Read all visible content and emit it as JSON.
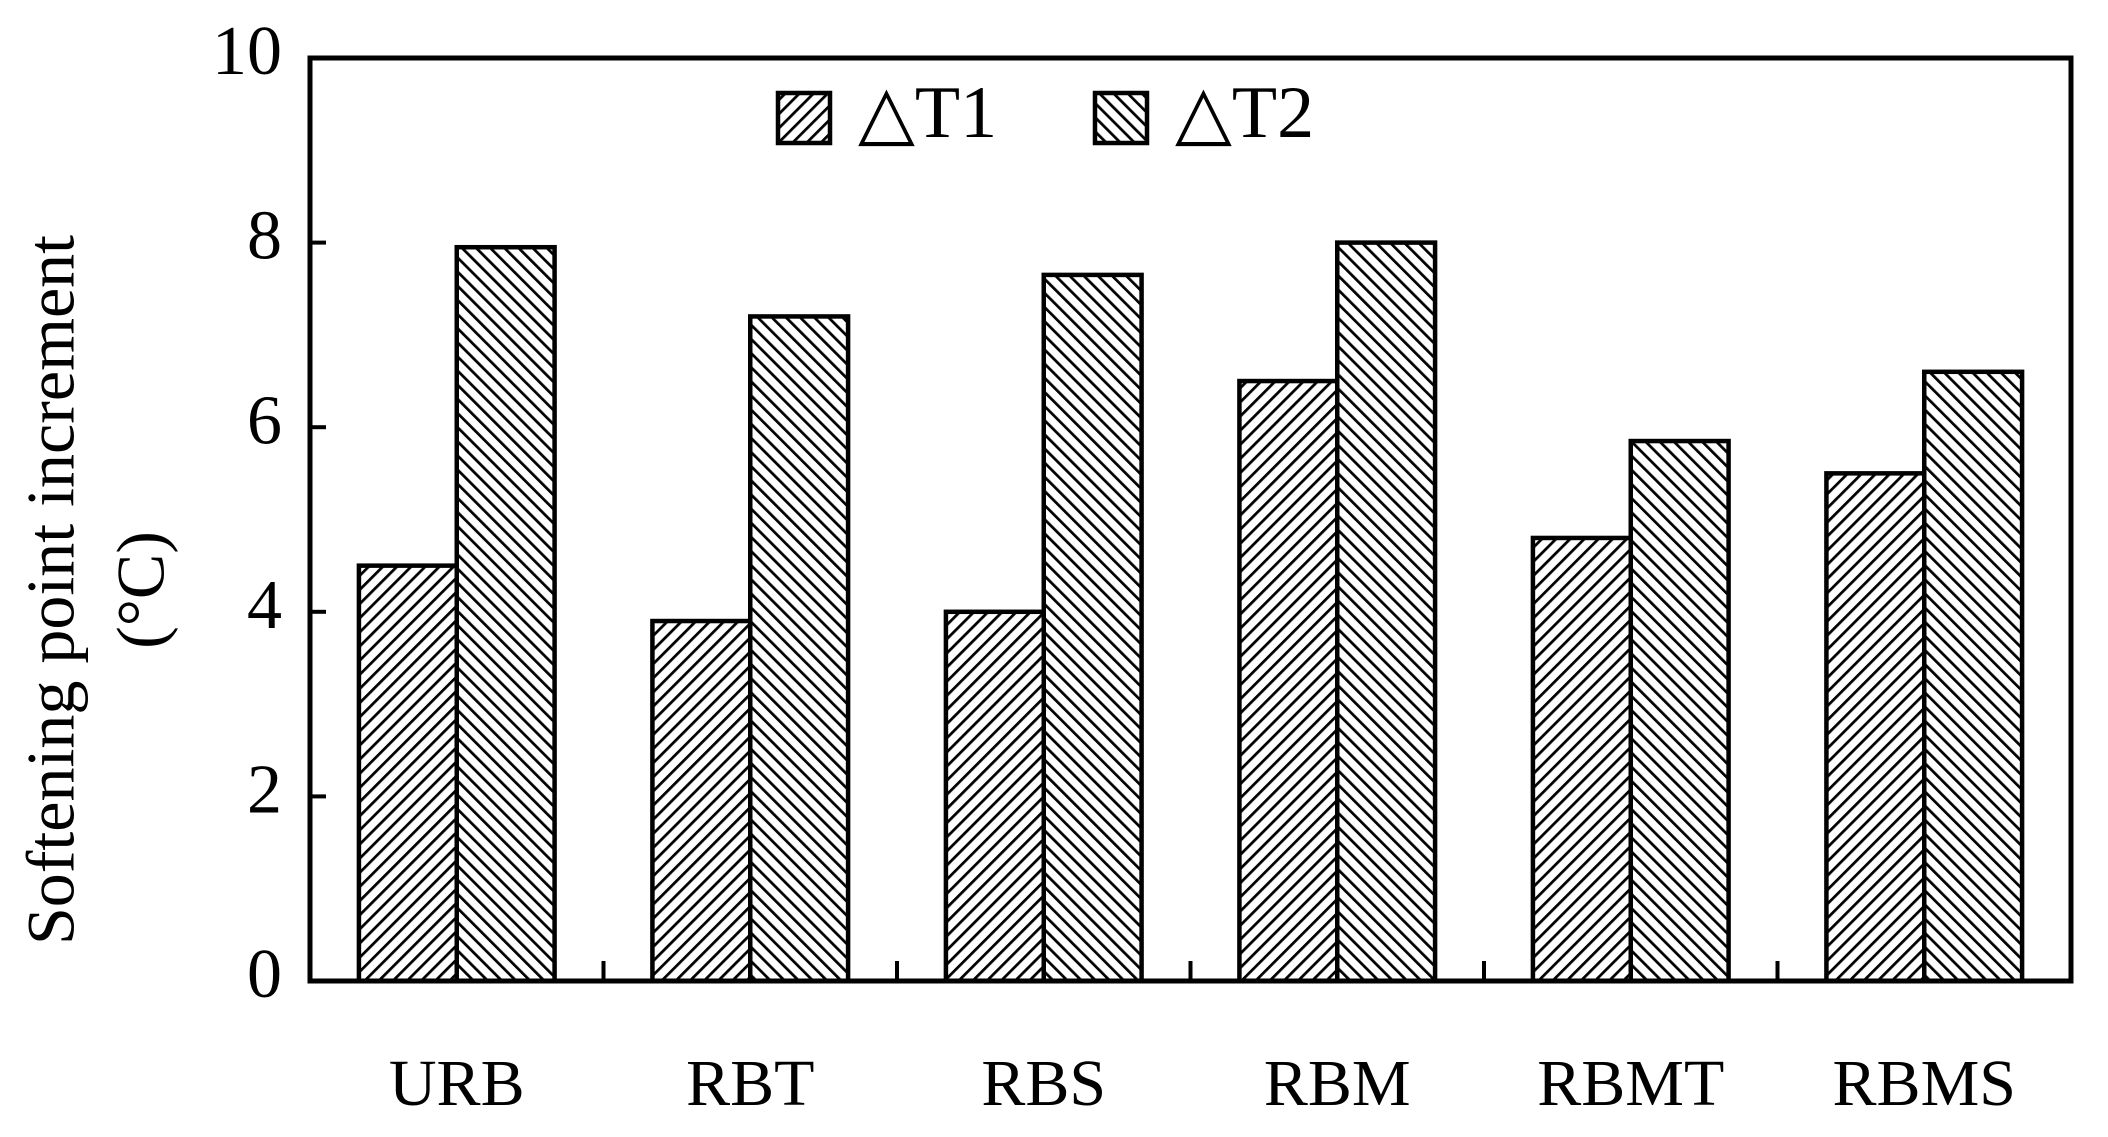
{
  "chart_data": {
    "type": "bar",
    "ylabel": [
      "Softening point increment",
      "(°C)"
    ],
    "categories": [
      "URB",
      "RBT",
      "RBS",
      "RBM",
      "RBMT",
      "RBMS"
    ],
    "series": [
      {
        "name": "△T1",
        "color": "#000000",
        "hatch": "/",
        "values": [
          4.5,
          3.9,
          4.0,
          6.5,
          4.8,
          5.5
        ]
      },
      {
        "name": "△T2",
        "color": "#000000",
        "hatch": "\\",
        "values": [
          7.95,
          7.2,
          7.65,
          8.0,
          5.85,
          6.6
        ]
      }
    ],
    "ylim": [
      0,
      10
    ],
    "yticks": [
      0,
      2,
      4,
      6,
      8,
      10
    ],
    "legend": "top"
  }
}
